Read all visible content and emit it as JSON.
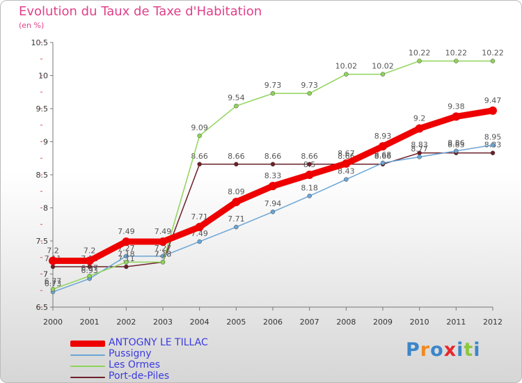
{
  "title": "Evolution du Taux de Taxe d'Habitation",
  "unit": "(en %)",
  "logo": "Proxiti",
  "chart_data": {
    "type": "line",
    "title": "Evolution du Taux de Taxe d'Habitation",
    "ylabel": "(en %)",
    "ylim": [
      6.5,
      10.5
    ],
    "yticks": [
      "6.5",
      "7",
      "7.5",
      "8",
      "8.5",
      "9",
      "9.5",
      "10",
      "10.5"
    ],
    "x": [
      "2000",
      "2001",
      "2002",
      "2003",
      "2004",
      "2005",
      "2006",
      "2007",
      "2008",
      "2009",
      "2010",
      "2011",
      "2012"
    ],
    "series": [
      {
        "name": "Port-de-Piles",
        "color": "#6b1f27",
        "values": [
          7.11,
          7.11,
          7.11,
          7.18,
          8.66,
          8.66,
          8.66,
          8.66,
          8.66,
          8.66,
          8.83,
          8.83,
          8.83
        ]
      },
      {
        "name": "Pussigny",
        "color": "#6aa5d6",
        "values": [
          6.73,
          6.93,
          7.27,
          7.27,
          7.49,
          7.71,
          7.94,
          8.18,
          8.43,
          8.68,
          8.77,
          8.86,
          8.95
        ]
      },
      {
        "name": "Les Ormes",
        "color": "#8fd45a",
        "values": [
          6.77,
          6.97,
          7.18,
          7.18,
          9.09,
          9.54,
          9.73,
          9.73,
          10.02,
          10.02,
          10.22,
          10.22,
          10.22
        ]
      },
      {
        "name": "ANTOGNY LE TILLAC",
        "color": "#ee0000",
        "values": [
          7.2,
          7.2,
          7.49,
          7.49,
          7.71,
          8.09,
          8.33,
          8.5,
          8.67,
          8.93,
          9.2,
          9.38,
          9.47
        ]
      }
    ],
    "legend": [
      "ANTOGNY LE TILLAC",
      "Pussigny",
      "Les Ormes",
      "Port-de-Piles"
    ],
    "grid": false
  }
}
